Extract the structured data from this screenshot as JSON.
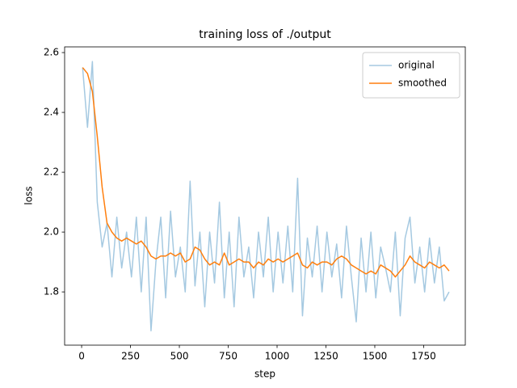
{
  "chart_data": {
    "type": "line",
    "title": "training loss of ./output",
    "xlabel": "step",
    "ylabel": "loss",
    "x": [
      5,
      30,
      55,
      80,
      105,
      130,
      155,
      180,
      205,
      230,
      255,
      280,
      305,
      330,
      355,
      380,
      405,
      430,
      455,
      480,
      505,
      530,
      555,
      580,
      605,
      630,
      655,
      680,
      705,
      730,
      755,
      780,
      805,
      830,
      855,
      880,
      905,
      930,
      955,
      980,
      1005,
      1030,
      1055,
      1080,
      1105,
      1130,
      1155,
      1180,
      1205,
      1230,
      1255,
      1280,
      1305,
      1330,
      1355,
      1380,
      1405,
      1430,
      1455,
      1480,
      1505,
      1530,
      1555,
      1580,
      1605,
      1630,
      1655,
      1680,
      1705,
      1730,
      1755,
      1780,
      1805,
      1830,
      1855,
      1880
    ],
    "series": [
      {
        "name": "original",
        "color": "#1f77b4",
        "alpha": 0.4,
        "values": [
          2.55,
          2.35,
          2.57,
          2.1,
          1.95,
          2.03,
          1.85,
          2.05,
          1.88,
          2.0,
          1.85,
          2.05,
          1.8,
          2.05,
          1.67,
          1.9,
          2.05,
          1.78,
          2.07,
          1.85,
          1.95,
          1.8,
          2.17,
          1.82,
          2.0,
          1.75,
          2.0,
          1.83,
          2.1,
          1.78,
          2.0,
          1.75,
          2.05,
          1.85,
          1.95,
          1.78,
          2.0,
          1.85,
          2.05,
          1.8,
          2.0,
          1.83,
          2.02,
          1.8,
          2.18,
          1.72,
          1.98,
          1.85,
          2.02,
          1.8,
          2.0,
          1.85,
          1.96,
          1.78,
          2.02,
          1.85,
          1.7,
          1.98,
          1.8,
          2.0,
          1.78,
          1.95,
          1.88,
          1.8,
          2.0,
          1.72,
          1.98,
          2.05,
          1.83,
          1.95,
          1.8,
          1.98,
          1.83,
          1.95,
          1.77,
          1.8
        ]
      },
      {
        "name": "smoothed",
        "color": "#ff7f0e",
        "alpha": 1,
        "values": [
          2.55,
          2.53,
          2.47,
          2.32,
          2.15,
          2.03,
          2.0,
          1.98,
          1.97,
          1.98,
          1.97,
          1.96,
          1.97,
          1.95,
          1.92,
          1.91,
          1.92,
          1.92,
          1.93,
          1.92,
          1.93,
          1.9,
          1.91,
          1.95,
          1.94,
          1.91,
          1.89,
          1.9,
          1.89,
          1.93,
          1.89,
          1.9,
          1.91,
          1.9,
          1.9,
          1.88,
          1.9,
          1.89,
          1.91,
          1.9,
          1.91,
          1.9,
          1.91,
          1.92,
          1.93,
          1.89,
          1.88,
          1.9,
          1.89,
          1.9,
          1.9,
          1.89,
          1.91,
          1.92,
          1.91,
          1.89,
          1.88,
          1.87,
          1.86,
          1.87,
          1.86,
          1.89,
          1.88,
          1.87,
          1.85,
          1.87,
          1.89,
          1.92,
          1.9,
          1.89,
          1.88,
          1.9,
          1.89,
          1.88,
          1.89,
          1.87
        ]
      }
    ],
    "xlim": [
      -87,
      1963
    ],
    "ylim": [
      1.622,
      2.619
    ],
    "xticks": [
      0,
      250,
      500,
      750,
      1000,
      1250,
      1500,
      1750
    ],
    "yticks": [
      1.8,
      {
        "value": 2,
        "label": "2.0"
      },
      2.2,
      2.4,
      2.6
    ],
    "legend": "upper right",
    "grid": false
  }
}
